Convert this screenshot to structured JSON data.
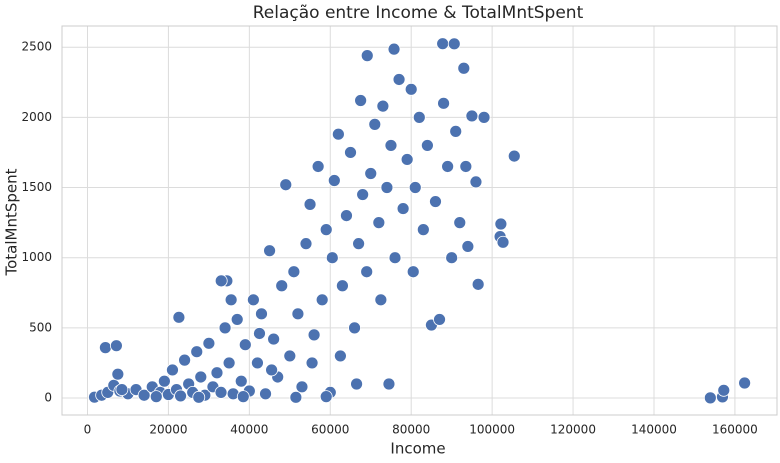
{
  "chart_data": {
    "type": "scatter",
    "title": "Relação entre Income & TotalMntSpent",
    "x_label": "Income",
    "y_label": "TotalMntSpent",
    "color": "#4c72b0",
    "grid": true,
    "xlim": [
      -6300,
      170400
    ],
    "ylim": [
      -121,
      2651
    ],
    "xticks": [
      0,
      20000,
      40000,
      60000,
      80000,
      100000,
      120000,
      140000,
      160000
    ],
    "yticks": [
      0,
      500,
      1000,
      1500,
      2000,
      2500
    ],
    "x": [
      1730,
      3500,
      5000,
      6500,
      7500,
      8000,
      10000,
      12000,
      14000,
      16000,
      18000,
      19000,
      20000,
      21000,
      22000,
      23000,
      24000,
      25000,
      26000,
      27000,
      28000,
      29000,
      30000,
      31000,
      32000,
      33000,
      34000,
      35000,
      36000,
      37000,
      38000,
      39000,
      40000,
      41000,
      42000,
      43000,
      44000,
      45000,
      46000,
      47000,
      48000,
      49000,
      50000,
      51000,
      52000,
      53000,
      54000,
      55000,
      56000,
      57000,
      58000,
      59000,
      60000,
      60500,
      61000,
      62000,
      62500,
      63000,
      64000,
      65000,
      66000,
      67000,
      67500,
      68000,
      69000,
      70000,
      71000,
      72000,
      72500,
      73000,
      74000,
      74500,
      75000,
      76000,
      77000,
      78000,
      79000,
      80000,
      80500,
      81000,
      82000,
      83000,
      84000,
      85000,
      86000,
      87000,
      88000,
      89000,
      90000,
      91000,
      92000,
      93000,
      93500,
      94000,
      95000,
      96000,
      98000,
      17000,
      8500,
      27500,
      38500,
      51500,
      59000,
      45500,
      55500,
      66500,
      35500,
      42500,
      153924,
      156924,
      157243,
      162397,
      4428,
      7144,
      105471,
      102160,
      101970,
      102692,
      96547,
      69139,
      75759,
      87771,
      90638,
      34445,
      33051,
      22588
    ],
    "values": [
      6,
      20,
      40,
      90,
      170,
      50,
      30,
      60,
      20,
      80,
      40,
      120,
      25,
      200,
      60,
      15,
      270,
      100,
      40,
      330,
      150,
      20,
      390,
      80,
      180,
      40,
      500,
      250,
      30,
      560,
      120,
      380,
      50,
      700,
      250,
      600,
      30,
      1050,
      420,
      150,
      800,
      1520,
      300,
      900,
      600,
      80,
      1100,
      1380,
      450,
      1650,
      700,
      1200,
      40,
      1000,
      1550,
      1880,
      300,
      800,
      1300,
      1750,
      500,
      1100,
      2120,
      1450,
      900,
      1600,
      1950,
      1250,
      700,
      2080,
      1500,
      100,
      1800,
      1000,
      2270,
      1350,
      1700,
      2200,
      900,
      1500,
      2000,
      1200,
      1800,
      520,
      1400,
      560,
      2100,
      1650,
      1000,
      1900,
      1250,
      2350,
      1650,
      1080,
      2010,
      1540,
      2000,
      10,
      60,
      5,
      10,
      5,
      10,
      200,
      250,
      100,
      700,
      460,
      1,
      8,
      55,
      107,
      359,
      373,
      1724,
      1240,
      1150,
      1110,
      810,
      2440,
      2486,
      2525,
      2524,
      835,
      835,
      575
    ]
  }
}
